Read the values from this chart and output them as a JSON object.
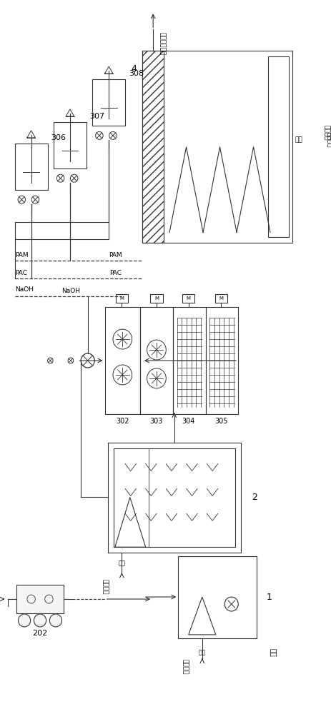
{
  "bg_color": "#ffffff",
  "line_color": "#333333",
  "labels": {
    "1": "1",
    "2": "2",
    "202": "202",
    "302": "302",
    "303": "303",
    "304": "304",
    "305": "305",
    "306": "306",
    "307": "307",
    "308": "308",
    "4": "4",
    "NaOH": "NaOH",
    "PAC": "PAC",
    "PAM": "PAM",
    "jinshui": "进水",
    "zhishui": "至水解酸化池",
    "wuni1": "污泥",
    "wuni2": "至污泥池",
    "wuni3": "污泥",
    "wuni4": "至污泥池",
    "zhiwunichi": "至污泥池"
  }
}
